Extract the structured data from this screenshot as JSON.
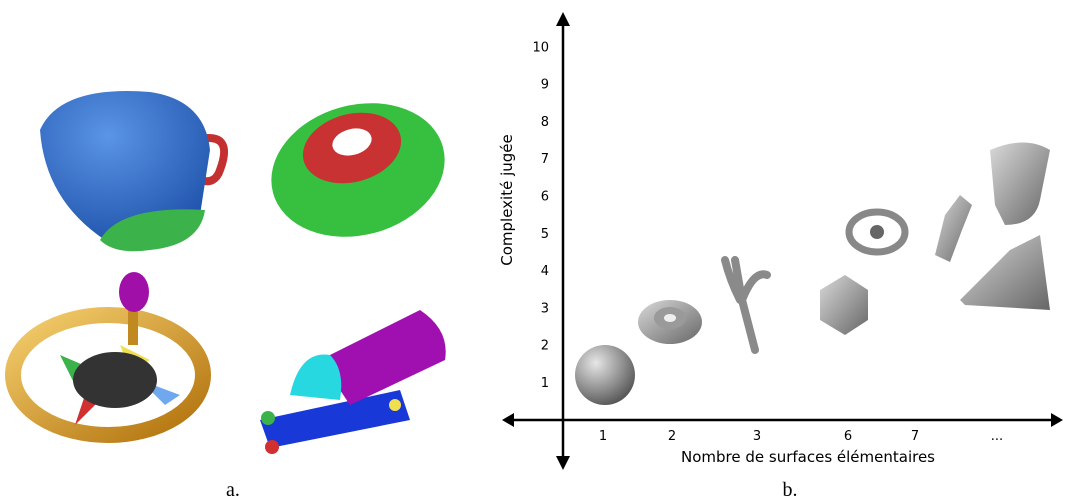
{
  "figure": {
    "panels": [
      {
        "label": "a."
      },
      {
        "label": "b."
      }
    ]
  },
  "plot": {
    "y_axis_title": "Complexité jugée",
    "x_axis_title": "Nombre de surfaces élémentaires",
    "y_ticks": [
      "1",
      "2",
      "3",
      "4",
      "5",
      "6",
      "7",
      "8",
      "9",
      "10"
    ],
    "x_labels": [
      "1",
      "2",
      "3",
      "6",
      "7",
      "..."
    ]
  }
}
